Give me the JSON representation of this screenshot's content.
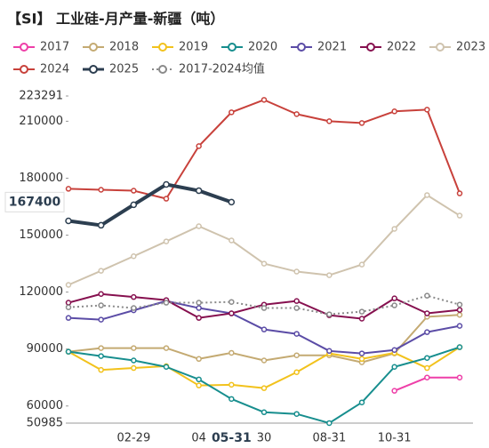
{
  "chart_data": {
    "type": "line",
    "title": "【SI】 工业硅-月产量-新疆（吨）",
    "categories": [
      null,
      null,
      "02-29",
      null,
      "04",
      "05-31",
      "30",
      null,
      "08-31",
      null,
      "10-31",
      null,
      null
    ],
    "ylim": [
      50985,
      223291
    ],
    "yticks": [
      50985,
      60000,
      90000,
      120000,
      150000,
      180000,
      210000,
      223291
    ],
    "grid": false,
    "legend": "top",
    "crosshair": {
      "value": 167400,
      "category": 5
    },
    "series": [
      {
        "name": "2017",
        "color": "#ee3fa8",
        "values": [
          null,
          null,
          null,
          null,
          null,
          null,
          null,
          null,
          null,
          null,
          68000,
          75000,
          75000
        ]
      },
      {
        "name": "2018",
        "color": "#c4aa72",
        "values": [
          88600,
          90500,
          90500,
          90500,
          84800,
          88000,
          84000,
          86700,
          86700,
          83000,
          87700,
          107000,
          108000
        ]
      },
      {
        "name": "2019",
        "color": "#f2c21c",
        "values": [
          88600,
          79000,
          80000,
          81000,
          70800,
          71200,
          69400,
          77800,
          87700,
          84800,
          88000,
          80000,
          91000
        ]
      },
      {
        "name": "2020",
        "color": "#178e8e",
        "values": [
          88600,
          86300,
          84000,
          80600,
          74000,
          63700,
          56700,
          55800,
          51000,
          61900,
          80600,
          85300,
          91000
        ]
      },
      {
        "name": "2021",
        "color": "#5b4ca6",
        "values": [
          106400,
          105500,
          110400,
          115300,
          111600,
          108800,
          100300,
          98000,
          89000,
          87700,
          89500,
          98900,
          102200
        ]
      },
      {
        "name": "2022",
        "color": "#86104f",
        "values": [
          114400,
          119000,
          117400,
          115800,
          106400,
          108800,
          113400,
          115300,
          107800,
          106000,
          116700,
          108800,
          110600
        ]
      },
      {
        "name": "2023",
        "color": "#cfc3ae",
        "values": [
          123800,
          131200,
          138900,
          146700,
          154700,
          147200,
          135000,
          130800,
          128900,
          134500,
          153300,
          171100,
          160300
        ]
      },
      {
        "name": "2024",
        "color": "#c8413b",
        "values": [
          174400,
          173900,
          173400,
          169200,
          196900,
          214700,
          221250,
          213750,
          210000,
          209060,
          215200,
          216100,
          172000
        ]
      },
      {
        "name": "2025",
        "color": "#2c3e50",
        "bold": true,
        "values": [
          157500,
          155200,
          166000,
          176700,
          173400,
          167400,
          null,
          null,
          null,
          null,
          null,
          null,
          null
        ]
      },
      {
        "name": "2017-2024均值",
        "color": "#8a8a8a",
        "dashed": true,
        "values": [
          112000,
          113000,
          111600,
          114400,
          114400,
          114800,
          111600,
          111600,
          108300,
          109700,
          113000,
          118100,
          113400
        ]
      }
    ]
  }
}
